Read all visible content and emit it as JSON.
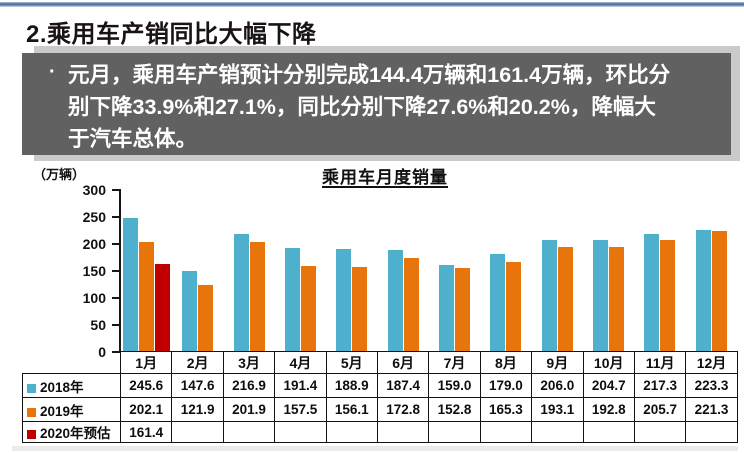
{
  "page": {
    "title": "2.乘用车产销同比大幅下降"
  },
  "summary_box": {
    "bullet": "·",
    "text": "元月，乘用车产销预计分别完成144.4万辆和161.4万辆，环比分\n别下降33.9%和27.1%，同比分别下降27.6%和20.2%，降幅大\n于汽车总体。",
    "background_color": "#616161",
    "text_color": "#ffffff"
  },
  "chart_data": {
    "type": "bar",
    "title": "乘用车月度销量",
    "unit_label": "（万辆）",
    "categories": [
      "1月",
      "2月",
      "3月",
      "4月",
      "5月",
      "6月",
      "7月",
      "8月",
      "9月",
      "10月",
      "11月",
      "12月"
    ],
    "series": [
      {
        "name": "2018年",
        "color": "#4FB0CE",
        "values": [
          245.6,
          147.6,
          216.9,
          191.4,
          188.9,
          187.4,
          159.0,
          179.0,
          206.0,
          204.7,
          217.3,
          223.3
        ]
      },
      {
        "name": "2019年",
        "color": "#E8740C",
        "values": [
          202.1,
          121.9,
          201.9,
          157.5,
          156.1,
          172.8,
          152.8,
          165.3,
          193.1,
          192.8,
          205.7,
          221.3
        ]
      },
      {
        "name": "2020年预估",
        "color": "#C00000",
        "values": [
          161.4,
          null,
          null,
          null,
          null,
          null,
          null,
          null,
          null,
          null,
          null,
          null
        ]
      }
    ],
    "ylim": [
      0,
      300
    ],
    "yticks": [
      300,
      250,
      200,
      150,
      100,
      50,
      0
    ],
    "grid": false,
    "legend_position": "table-rows",
    "data_table_shown": true
  }
}
